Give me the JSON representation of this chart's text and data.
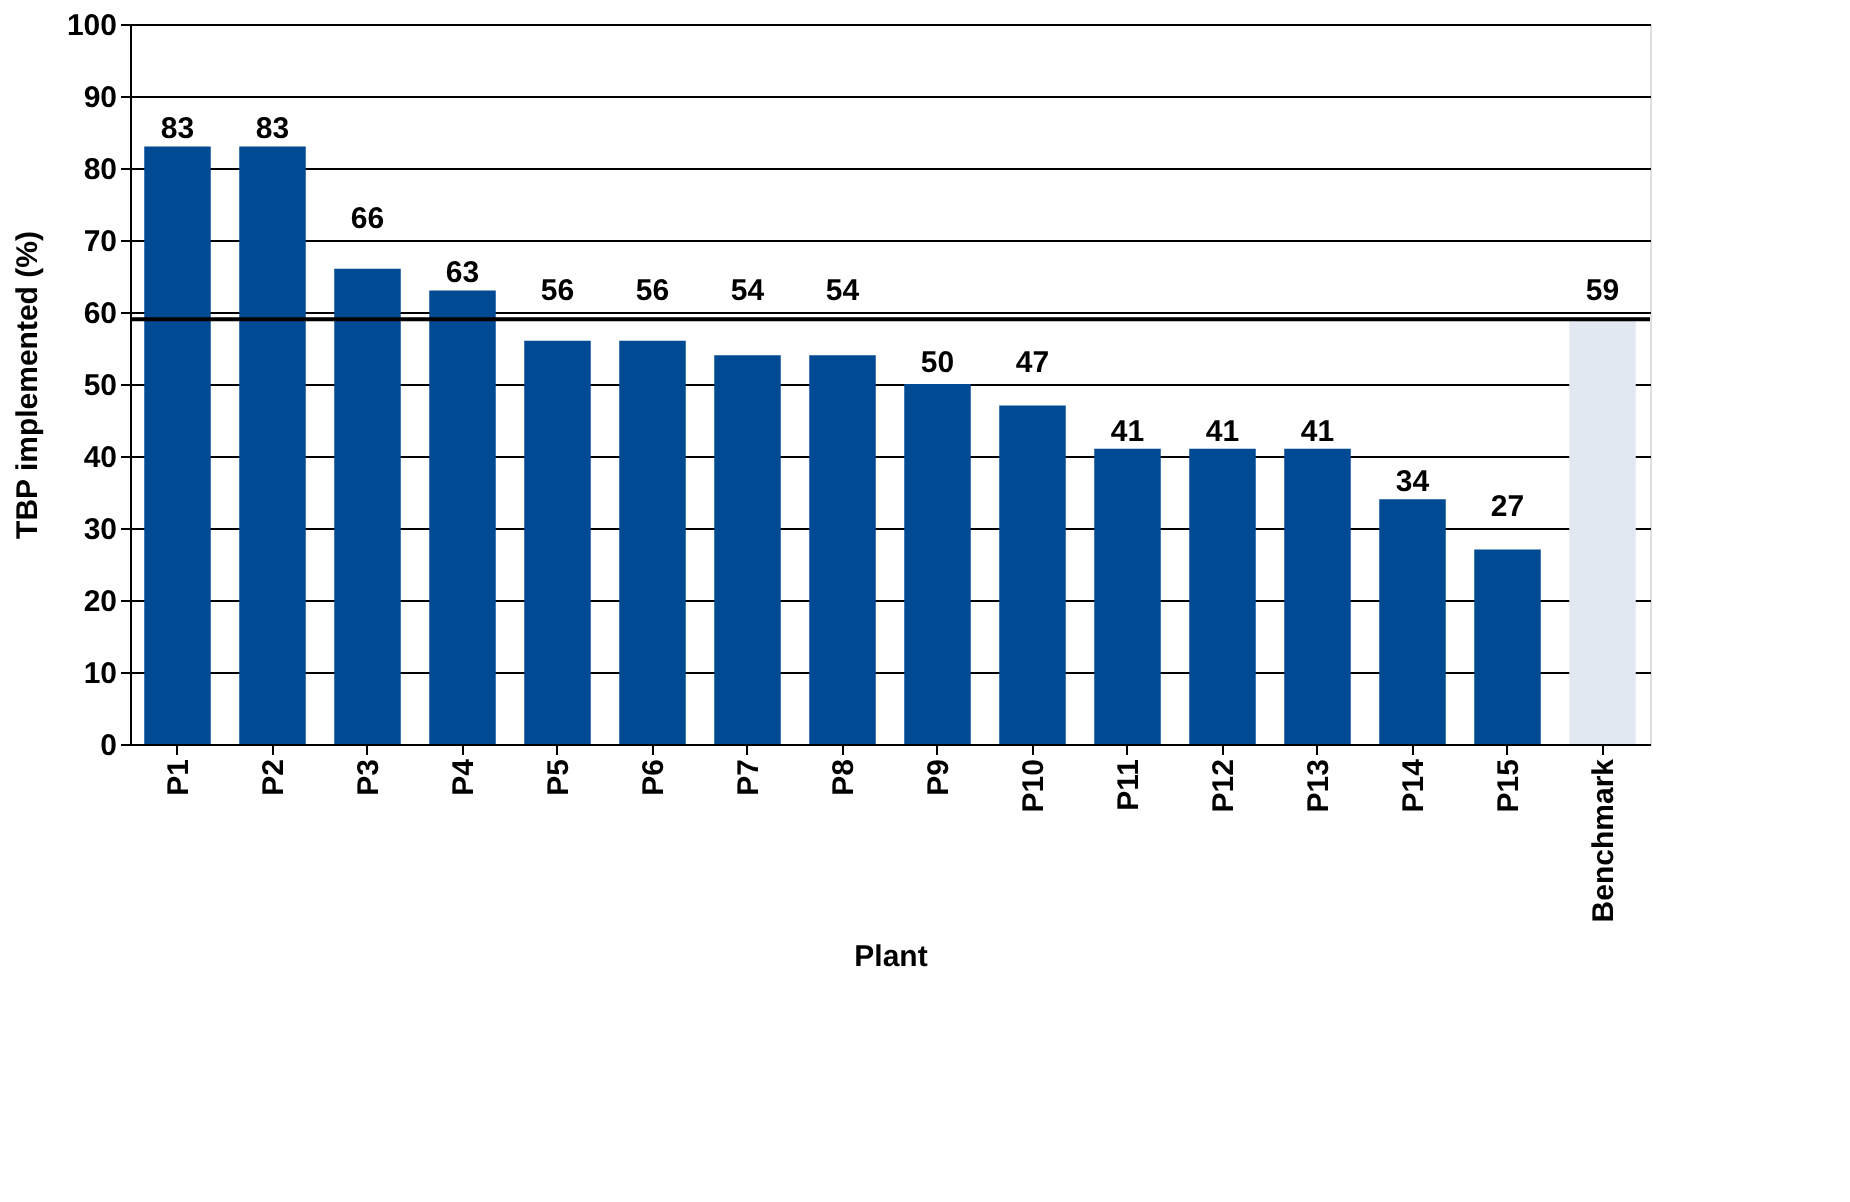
{
  "chart_data": {
    "type": "bar",
    "xlabel": "Plant",
    "ylabel": "TBP implemented (%)",
    "categories": [
      "P1",
      "P2",
      "P3",
      "P4",
      "P5",
      "P6",
      "P7",
      "P8",
      "P9",
      "P10",
      "P11",
      "P12",
      "P13",
      "P14",
      "P15",
      "Benchmark"
    ],
    "values": [
      83,
      83,
      66,
      63,
      56,
      56,
      54,
      54,
      50,
      47,
      41,
      41,
      41,
      34,
      27,
      59
    ],
    "colors": [
      "#004a93",
      "#004a93",
      "#004a93",
      "#004a93",
      "#004a93",
      "#004a93",
      "#004a93",
      "#004a93",
      "#004a93",
      "#004a93",
      "#004a93",
      "#004a93",
      "#004a93",
      "#004a93",
      "#004a93",
      "#e1e8f1"
    ],
    "ylim": [
      0,
      100
    ],
    "yticks": [
      0,
      10,
      20,
      30,
      40,
      50,
      60,
      70,
      80,
      90,
      100
    ],
    "grid": "y",
    "data_labels": true,
    "ref_lines": [
      {
        "axis": "y",
        "value": 59,
        "color": "#000000"
      }
    ]
  }
}
